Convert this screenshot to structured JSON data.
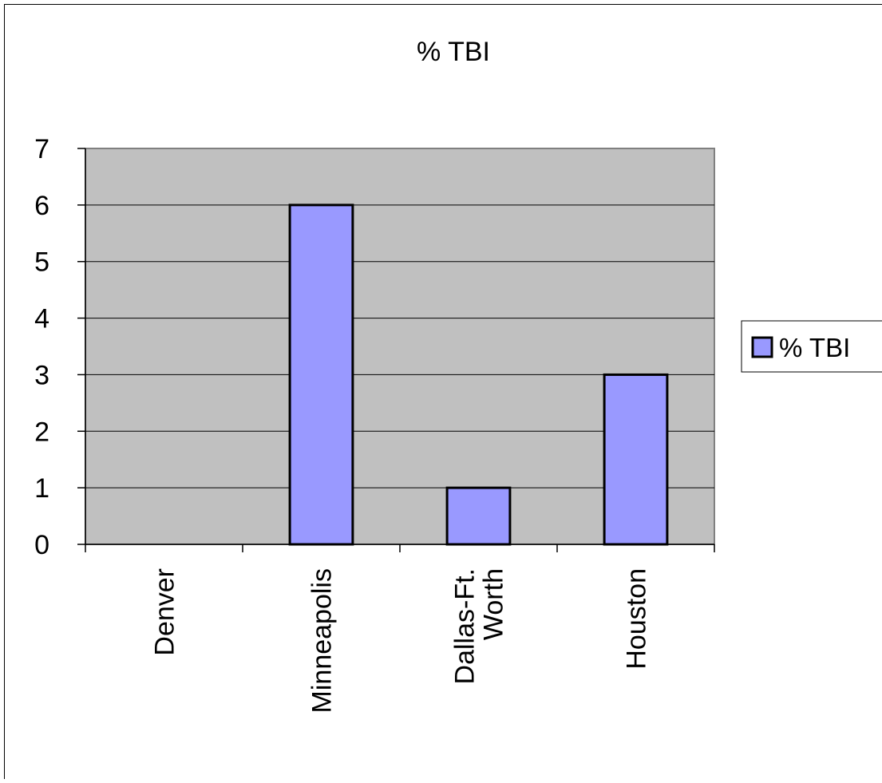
{
  "chart_data": {
    "type": "bar",
    "title": "% TBI",
    "xlabel": "",
    "ylabel": "",
    "categories": [
      "Denver",
      "Minneapolis",
      "Dallas-Ft. Worth",
      "Houston"
    ],
    "category_lines": [
      [
        "Denver"
      ],
      [
        "Minneapolis"
      ],
      [
        "Dallas-Ft.",
        "Worth"
      ],
      [
        "Houston"
      ]
    ],
    "series": [
      {
        "name": "% TBI",
        "values": [
          0,
          6,
          1,
          3
        ]
      }
    ],
    "ylim": [
      0,
      7
    ],
    "yticks": [
      0,
      1,
      2,
      3,
      4,
      5,
      6,
      7
    ],
    "grid": true,
    "legend_position": "right",
    "colors": {
      "bar_fill": "#9999ff",
      "plot_background": "#c0c0c0",
      "gridline": "#000000",
      "bar_stroke": "#000000"
    }
  }
}
